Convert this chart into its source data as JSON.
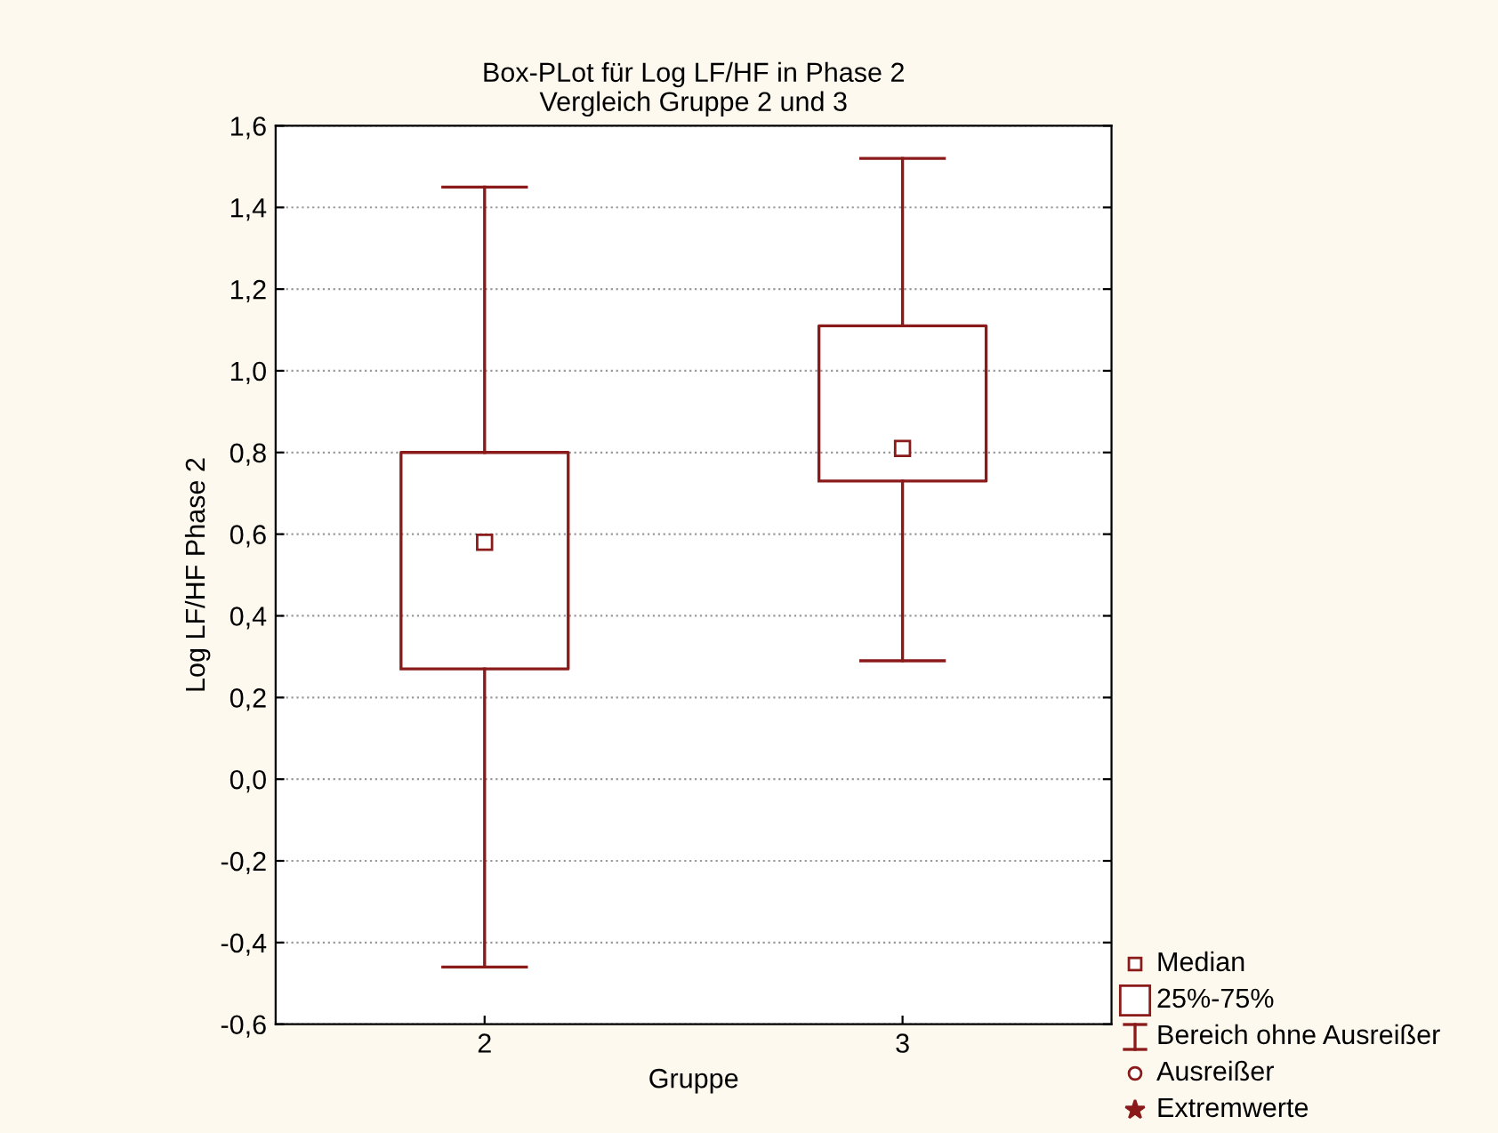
{
  "chart_data": {
    "type": "box",
    "title": "Box-PLot für Log LF/HF in Phase 2\nVergleich Gruppe 2 und 3",
    "xlabel": "Gruppe",
    "ylabel": "Log LF/HF Phase 2",
    "categories": [
      "2",
      "3"
    ],
    "series": [
      {
        "color": "#8b1a1a",
        "boxes": [
          {
            "low": -0.46,
            "q1": 0.27,
            "median": 0.58,
            "q3": 0.8,
            "high": 1.45
          },
          {
            "low": 0.29,
            "q1": 0.73,
            "median": 0.81,
            "q3": 1.11,
            "high": 1.52
          }
        ]
      }
    ],
    "ylim": [
      -0.6,
      1.6
    ],
    "yticks": [
      {
        "value": -0.6,
        "label": "-0,6"
      },
      {
        "value": -0.4,
        "label": "-0,4"
      },
      {
        "value": -0.2,
        "label": "-0,2"
      },
      {
        "value": 0,
        "label": "0,0"
      },
      {
        "value": 0.2,
        "label": "0,2"
      },
      {
        "value": 0.4,
        "label": "0,4"
      },
      {
        "value": 0.6,
        "label": "0,6"
      },
      {
        "value": 0.8,
        "label": "0,8"
      },
      {
        "value": 1.0,
        "label": "1,0"
      },
      {
        "value": 1.2,
        "label": "1,2"
      },
      {
        "value": 1.4,
        "label": "1,4"
      },
      {
        "value": 1.6,
        "label": "1,6"
      }
    ],
    "grid": "y",
    "annotations": [
      "Median",
      "25%-75%",
      "Bereich ohne Ausreißer",
      "Ausreißer",
      "Extremwerte"
    ]
  }
}
